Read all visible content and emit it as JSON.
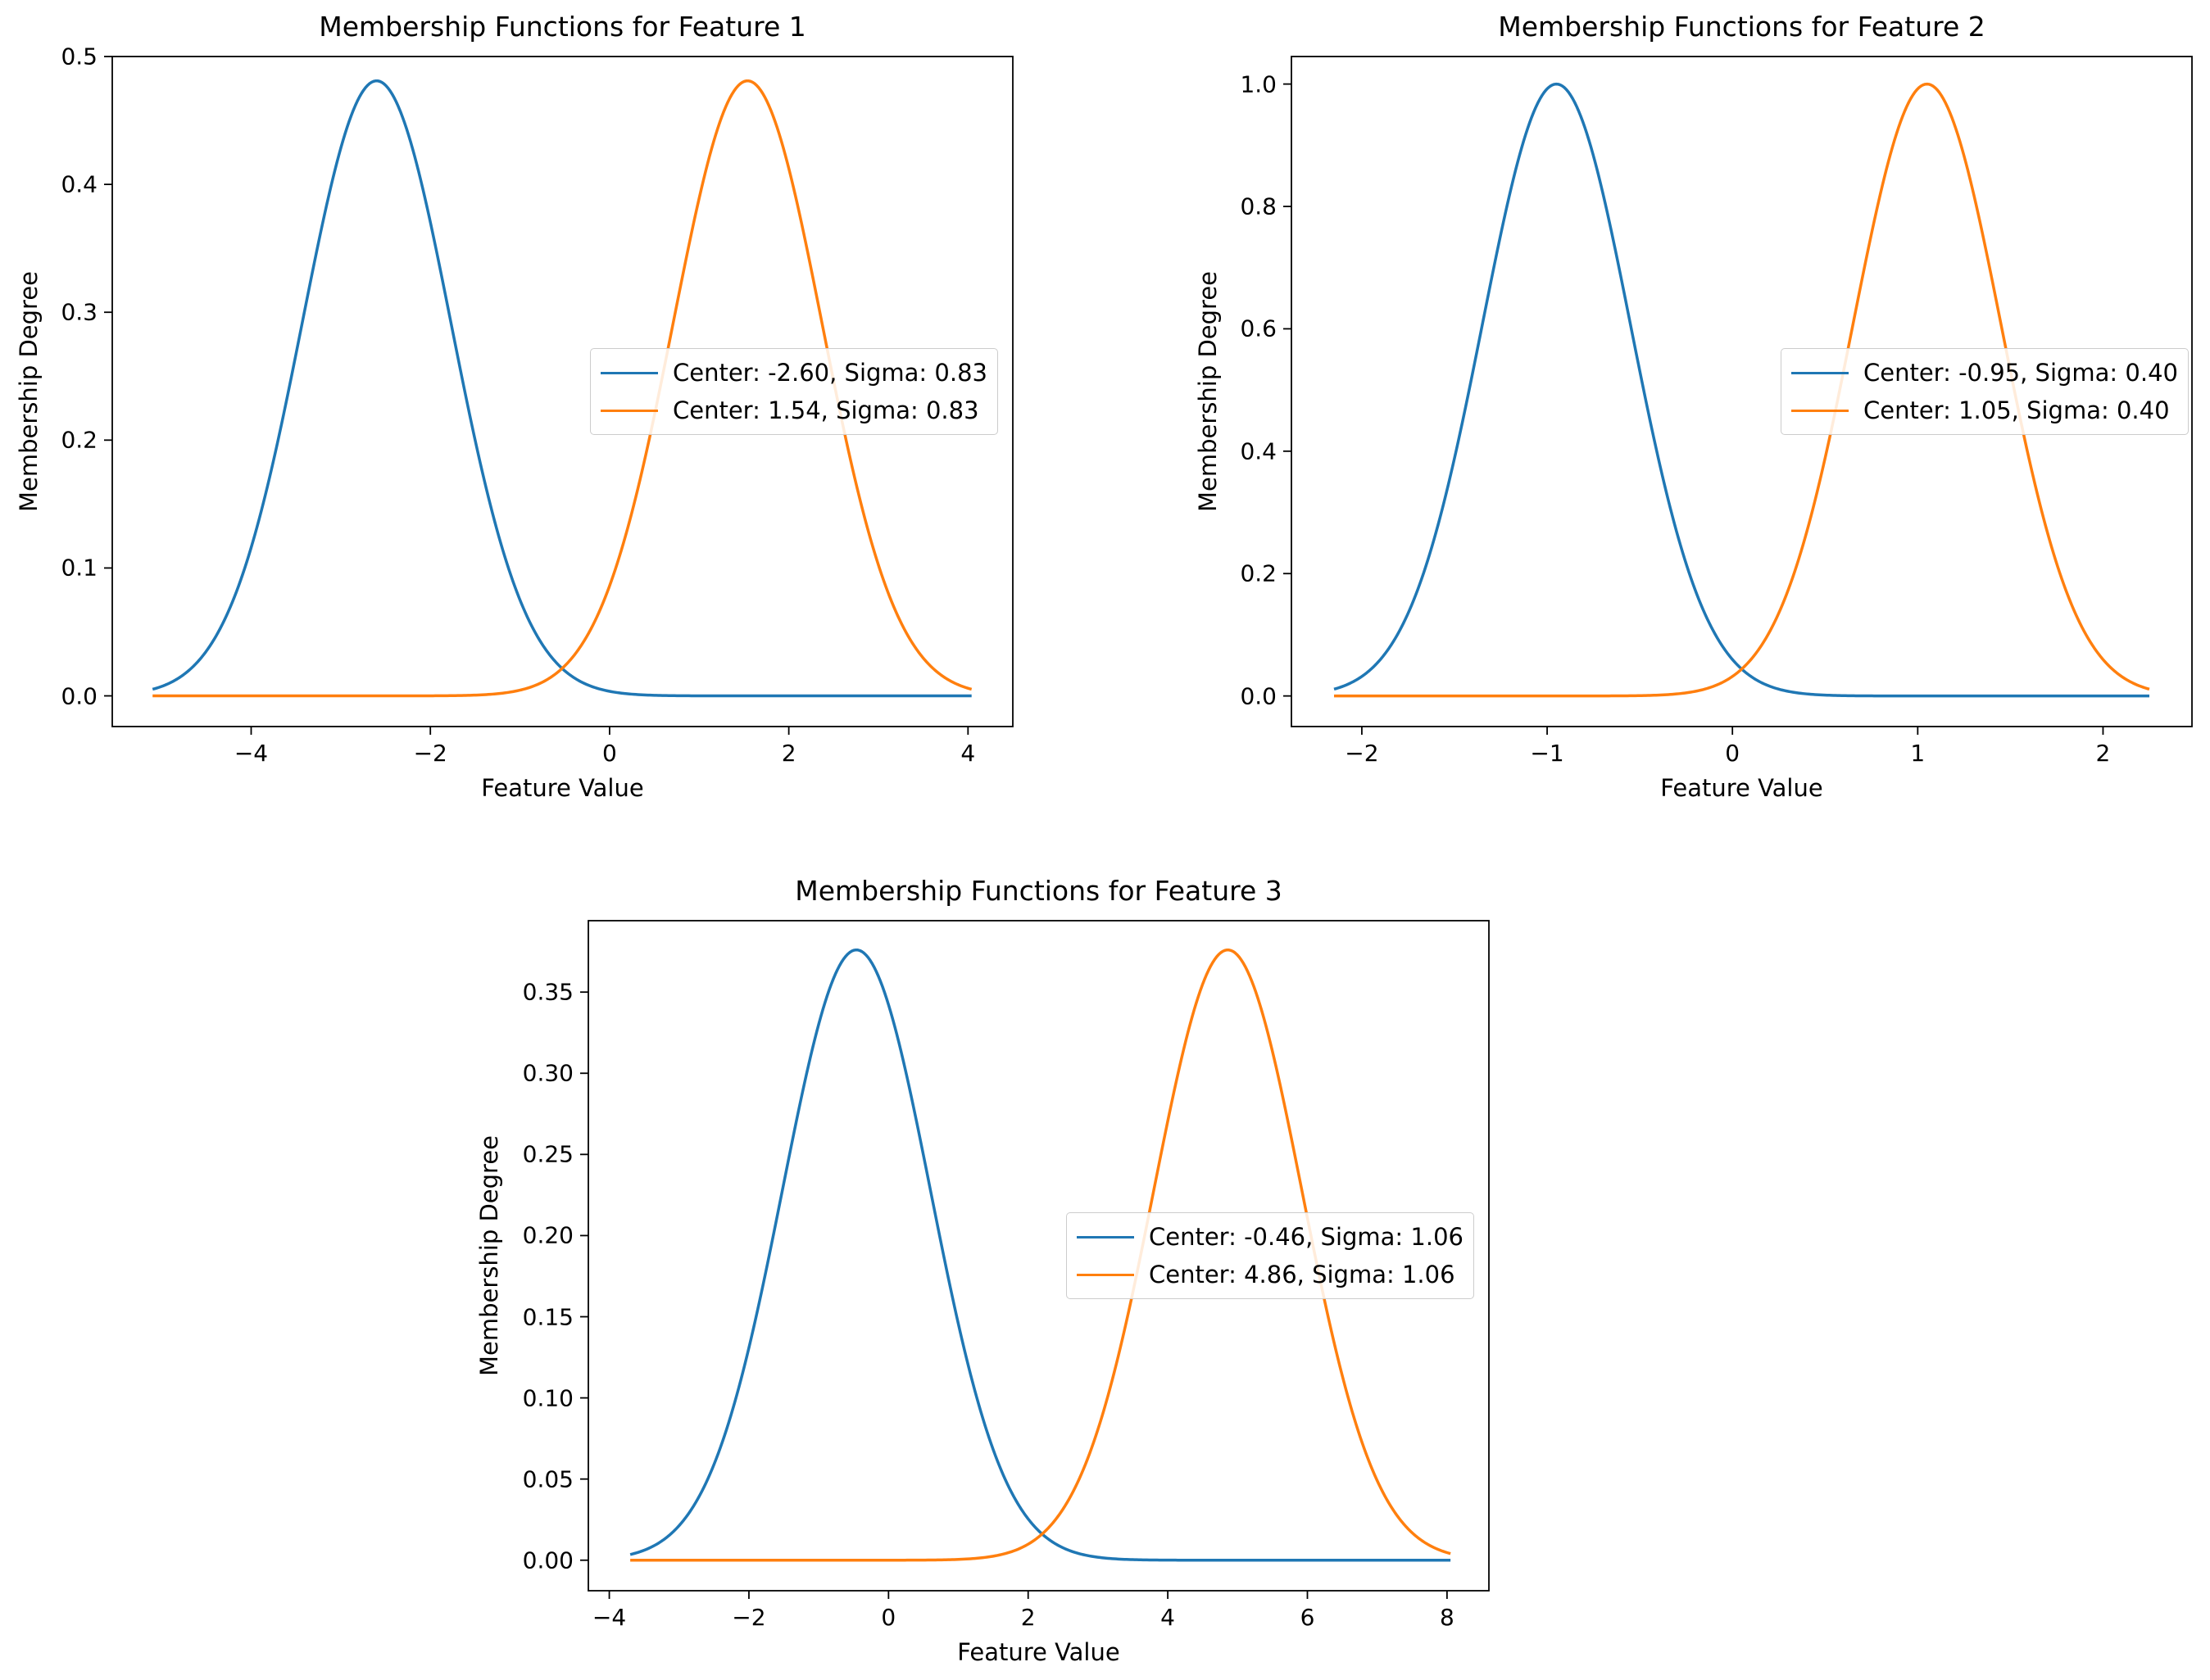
{
  "chart_data": [
    {
      "type": "line",
      "title": "Membership Functions for Feature 1",
      "xlabel": "Feature Value",
      "ylabel": "Membership Degree",
      "xlim": [
        -5.55,
        4.5
      ],
      "ylim": [
        -0.024,
        0.5
      ],
      "x_range": [
        -5.1,
        4.04
      ],
      "xticks": [
        -4,
        -2,
        0,
        2,
        4
      ],
      "xtick_labels": [
        "−4",
        "−2",
        "0",
        "2",
        "4"
      ],
      "yticks": [
        0.0,
        0.1,
        0.2,
        0.3,
        0.4,
        0.5
      ],
      "ytick_labels": [
        "0.0",
        "0.1",
        "0.2",
        "0.3",
        "0.4",
        "0.5"
      ],
      "legend_position": "center-right",
      "series": [
        {
          "name": "Center: -2.60, Sigma: 0.83",
          "center": -2.6,
          "sigma": 0.83,
          "peak": 0.481,
          "color": "#1f77b4"
        },
        {
          "name": "Center: 1.54, Sigma: 0.83",
          "center": 1.54,
          "sigma": 0.83,
          "peak": 0.481,
          "color": "#ff7f0e"
        }
      ]
    },
    {
      "type": "line",
      "title": "Membership Functions for Feature 2",
      "xlabel": "Feature Value",
      "ylabel": "Membership Degree",
      "xlim": [
        -2.38,
        2.48
      ],
      "ylim": [
        -0.05,
        1.045
      ],
      "x_range": [
        -2.15,
        2.25
      ],
      "xticks": [
        -2,
        -1,
        0,
        1,
        2
      ],
      "xtick_labels": [
        "−2",
        "−1",
        "0",
        "1",
        "2"
      ],
      "yticks": [
        0.0,
        0.2,
        0.4,
        0.6,
        0.8,
        1.0
      ],
      "ytick_labels": [
        "0.0",
        "0.2",
        "0.4",
        "0.6",
        "0.8",
        "1.0"
      ],
      "legend_position": "center-right",
      "series": [
        {
          "name": "Center: -0.95, Sigma: 0.40",
          "center": -0.95,
          "sigma": 0.4,
          "peak": 1.0,
          "color": "#1f77b4"
        },
        {
          "name": "Center: 1.05, Sigma: 0.40",
          "center": 1.05,
          "sigma": 0.4,
          "peak": 1.0,
          "color": "#ff7f0e"
        }
      ]
    },
    {
      "type": "line",
      "title": "Membership Functions for Feature 3",
      "xlabel": "Feature Value",
      "ylabel": "Membership Degree",
      "xlim": [
        -4.3,
        8.6
      ],
      "ylim": [
        -0.0188,
        0.394
      ],
      "x_range": [
        -3.7,
        8.05
      ],
      "xticks": [
        -4,
        -2,
        0,
        2,
        4,
        6,
        8
      ],
      "xtick_labels": [
        "−4",
        "−2",
        "0",
        "2",
        "4",
        "6",
        "8"
      ],
      "yticks": [
        0.0,
        0.05,
        0.1,
        0.15,
        0.2,
        0.25,
        0.3,
        0.35
      ],
      "ytick_labels": [
        "0.00",
        "0.05",
        "0.10",
        "0.15",
        "0.20",
        "0.25",
        "0.30",
        "0.35"
      ],
      "legend_position": "center-right",
      "series": [
        {
          "name": "Center: -0.46, Sigma: 1.06",
          "center": -0.46,
          "sigma": 1.06,
          "peak": 0.376,
          "color": "#1f77b4"
        },
        {
          "name": "Center: 4.86, Sigma: 1.06",
          "center": 4.86,
          "sigma": 1.06,
          "peak": 0.376,
          "color": "#ff7f0e"
        }
      ]
    }
  ]
}
